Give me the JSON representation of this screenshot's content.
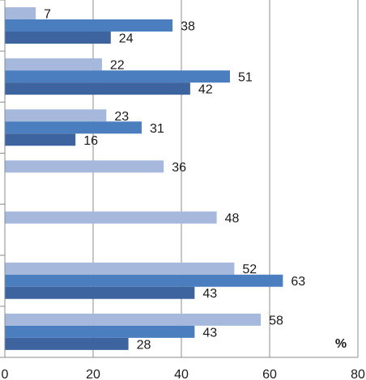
{
  "chart_data": {
    "type": "bar",
    "orientation": "horizontal",
    "unit": "%",
    "xlim": [
      0,
      80
    ],
    "x_ticks": [
      "0",
      "20",
      "40",
      "60",
      "80"
    ],
    "grid": true,
    "categories": [
      "",
      "",
      "",
      "",
      "",
      "",
      ""
    ],
    "groups": [
      {
        "values": [
          7,
          38,
          24
        ]
      },
      {
        "values": [
          22,
          51,
          42
        ]
      },
      {
        "values": [
          23,
          31,
          16
        ]
      },
      {
        "values": [
          36
        ]
      },
      {
        "values": [
          48
        ]
      },
      {
        "values": [
          52,
          63,
          43
        ]
      },
      {
        "values": [
          58,
          43,
          28
        ]
      }
    ],
    "series_colors": [
      "#a6b9dc",
      "#4a7ebf",
      "#3e64a0"
    ]
  }
}
